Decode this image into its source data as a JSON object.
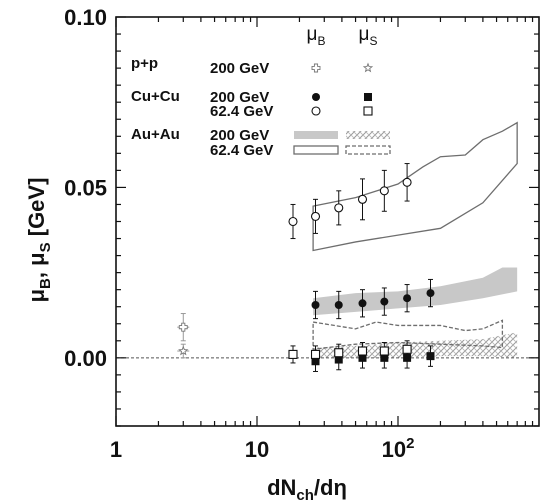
{
  "chart_data": {
    "type": "scatter",
    "xscale": "log",
    "xlim": [
      1,
      1000
    ],
    "ylim": [
      -0.02,
      0.1
    ],
    "grid": false,
    "xlabel": {
      "main": "dN",
      "sub": "ch",
      "tail": "/dη"
    },
    "ylabel": {
      "a": "μ",
      "a_sub": "B",
      "sep": ", ",
      "b": "μ",
      "b_sub": "S",
      "unit": " [GeV]"
    },
    "x_ticks": [
      {
        "v": 1,
        "label": "1"
      },
      {
        "v": 10,
        "label": "10"
      },
      {
        "v": 100,
        "label": "10",
        "sup": "2"
      }
    ],
    "y_ticks": [
      {
        "v": 0.0,
        "label": "0.00"
      },
      {
        "v": 0.05,
        "label": "0.05"
      },
      {
        "v": 0.1,
        "label": "0.10"
      }
    ],
    "legend": {
      "col_mu_b": {
        "main": "μ",
        "sub": "B"
      },
      "col_mu_s": {
        "main": "μ",
        "sub": "S"
      },
      "rows": [
        {
          "system": "p+p",
          "energy": "200 GeV",
          "mu_b_symbol": "open-cross",
          "mu_s_symbol": "open-star"
        },
        {
          "system": "Cu+Cu",
          "energy": "200 GeV",
          "mu_b_symbol": "filled-circle",
          "mu_s_symbol": "filled-square"
        },
        {
          "system": "",
          "energy": "62.4 GeV",
          "mu_b_symbol": "open-circle",
          "mu_s_symbol": "open-square"
        },
        {
          "system": "Au+Au",
          "energy": "200 GeV",
          "mu_b_symbol": "gray-band",
          "mu_s_symbol": "hatched-band"
        },
        {
          "system": "",
          "energy": "62.4 GeV",
          "mu_b_symbol": "open-band",
          "mu_s_symbol": "dashed-band"
        }
      ]
    },
    "series": [
      {
        "name": "p+p 200 GeV μB",
        "marker": "open-cross",
        "points": [
          {
            "x": 3.0,
            "y": 0.009,
            "err": 0.004
          }
        ]
      },
      {
        "name": "p+p 200 GeV μS",
        "marker": "open-star",
        "points": [
          {
            "x": 3.0,
            "y": 0.002,
            "err": 0.002
          }
        ]
      },
      {
        "name": "Cu+Cu 200 GeV μB",
        "marker": "filled-circle",
        "points": [
          {
            "x": 26,
            "y": 0.0155,
            "err": 0.004
          },
          {
            "x": 38,
            "y": 0.0155,
            "err": 0.004
          },
          {
            "x": 56,
            "y": 0.016,
            "err": 0.004
          },
          {
            "x": 80,
            "y": 0.0165,
            "err": 0.004
          },
          {
            "x": 116,
            "y": 0.0175,
            "err": 0.004
          },
          {
            "x": 170,
            "y": 0.019,
            "err": 0.004
          }
        ]
      },
      {
        "name": "Cu+Cu 62.4 GeV μB",
        "marker": "open-circle",
        "points": [
          {
            "x": 18,
            "y": 0.04,
            "err": 0.005
          },
          {
            "x": 26,
            "y": 0.0415,
            "err": 0.005
          },
          {
            "x": 38,
            "y": 0.044,
            "err": 0.005
          },
          {
            "x": 56,
            "y": 0.0465,
            "err": 0.006
          },
          {
            "x": 80,
            "y": 0.049,
            "err": 0.006
          },
          {
            "x": 116,
            "y": 0.0515,
            "err": 0.0055
          }
        ]
      },
      {
        "name": "Cu+Cu 200 GeV μS",
        "marker": "filled-square",
        "points": [
          {
            "x": 26,
            "y": -0.001,
            "err": 0.003
          },
          {
            "x": 38,
            "y": -0.0005,
            "err": 0.003
          },
          {
            "x": 56,
            "y": 0.0,
            "err": 0.003
          },
          {
            "x": 80,
            "y": 0.0,
            "err": 0.003
          },
          {
            "x": 116,
            "y": 0.0,
            "err": 0.003
          },
          {
            "x": 170,
            "y": 0.0005,
            "err": 0.003
          }
        ]
      },
      {
        "name": "Cu+Cu 62.4 GeV μS",
        "marker": "open-square",
        "points": [
          {
            "x": 18,
            "y": 0.001,
            "err": 0.0025
          },
          {
            "x": 26,
            "y": 0.001,
            "err": 0.0025
          },
          {
            "x": 38,
            "y": 0.0015,
            "err": 0.0025
          },
          {
            "x": 56,
            "y": 0.002,
            "err": 0.0025
          },
          {
            "x": 80,
            "y": 0.002,
            "err": 0.0025
          },
          {
            "x": 116,
            "y": 0.0025,
            "err": 0.0025
          }
        ]
      }
    ],
    "bands": [
      {
        "name": "Au+Au 200 GeV μB",
        "style": "gray-band",
        "lower": [
          [
            25,
            0.0125
          ],
          [
            50,
            0.0135
          ],
          [
            100,
            0.0145
          ],
          [
            200,
            0.0155
          ],
          [
            400,
            0.0175
          ],
          [
            700,
            0.0195
          ]
        ],
        "upper": [
          [
            25,
            0.0175
          ],
          [
            50,
            0.019
          ],
          [
            100,
            0.0195
          ],
          [
            200,
            0.021
          ],
          [
            400,
            0.0235
          ],
          [
            550,
            0.0265
          ],
          [
            700,
            0.0265
          ]
        ]
      },
      {
        "name": "Au+Au 62.4 GeV μB",
        "style": "open-band",
        "lower": [
          [
            25,
            0.0315
          ],
          [
            50,
            0.034
          ],
          [
            100,
            0.036
          ],
          [
            200,
            0.038
          ],
          [
            400,
            0.0455
          ],
          [
            700,
            0.057
          ]
        ],
        "upper": [
          [
            25,
            0.0445
          ],
          [
            50,
            0.047
          ],
          [
            100,
            0.051
          ],
          [
            150,
            0.056
          ],
          [
            200,
            0.059
          ],
          [
            300,
            0.0595
          ],
          [
            400,
            0.064
          ],
          [
            550,
            0.0665
          ],
          [
            700,
            0.069
          ]
        ]
      },
      {
        "name": "Au+Au 200 GeV μS",
        "style": "hatched-band",
        "lower": [
          [
            25,
            0.0
          ],
          [
            50,
            0.0
          ],
          [
            100,
            0.0
          ],
          [
            200,
            0.0005
          ],
          [
            400,
            0.0005
          ],
          [
            700,
            0.0
          ]
        ],
        "upper": [
          [
            25,
            0.003
          ],
          [
            50,
            0.0035
          ],
          [
            100,
            0.0045
          ],
          [
            200,
            0.005
          ],
          [
            400,
            0.0055
          ],
          [
            700,
            0.0075
          ]
        ]
      },
      {
        "name": "Au+Au 62.4 GeV μS",
        "style": "dashed-band",
        "lower": [
          [
            25,
            0.0025
          ],
          [
            50,
            0.004
          ],
          [
            100,
            0.0045
          ],
          [
            200,
            0.004
          ],
          [
            400,
            0.0035
          ],
          [
            550,
            0.003
          ]
        ],
        "upper": [
          [
            25,
            0.0105
          ],
          [
            50,
            0.0085
          ],
          [
            70,
            0.0105
          ],
          [
            100,
            0.0095
          ],
          [
            200,
            0.0095
          ],
          [
            300,
            0.008
          ],
          [
            400,
            0.0085
          ],
          [
            550,
            0.011
          ]
        ]
      }
    ]
  }
}
